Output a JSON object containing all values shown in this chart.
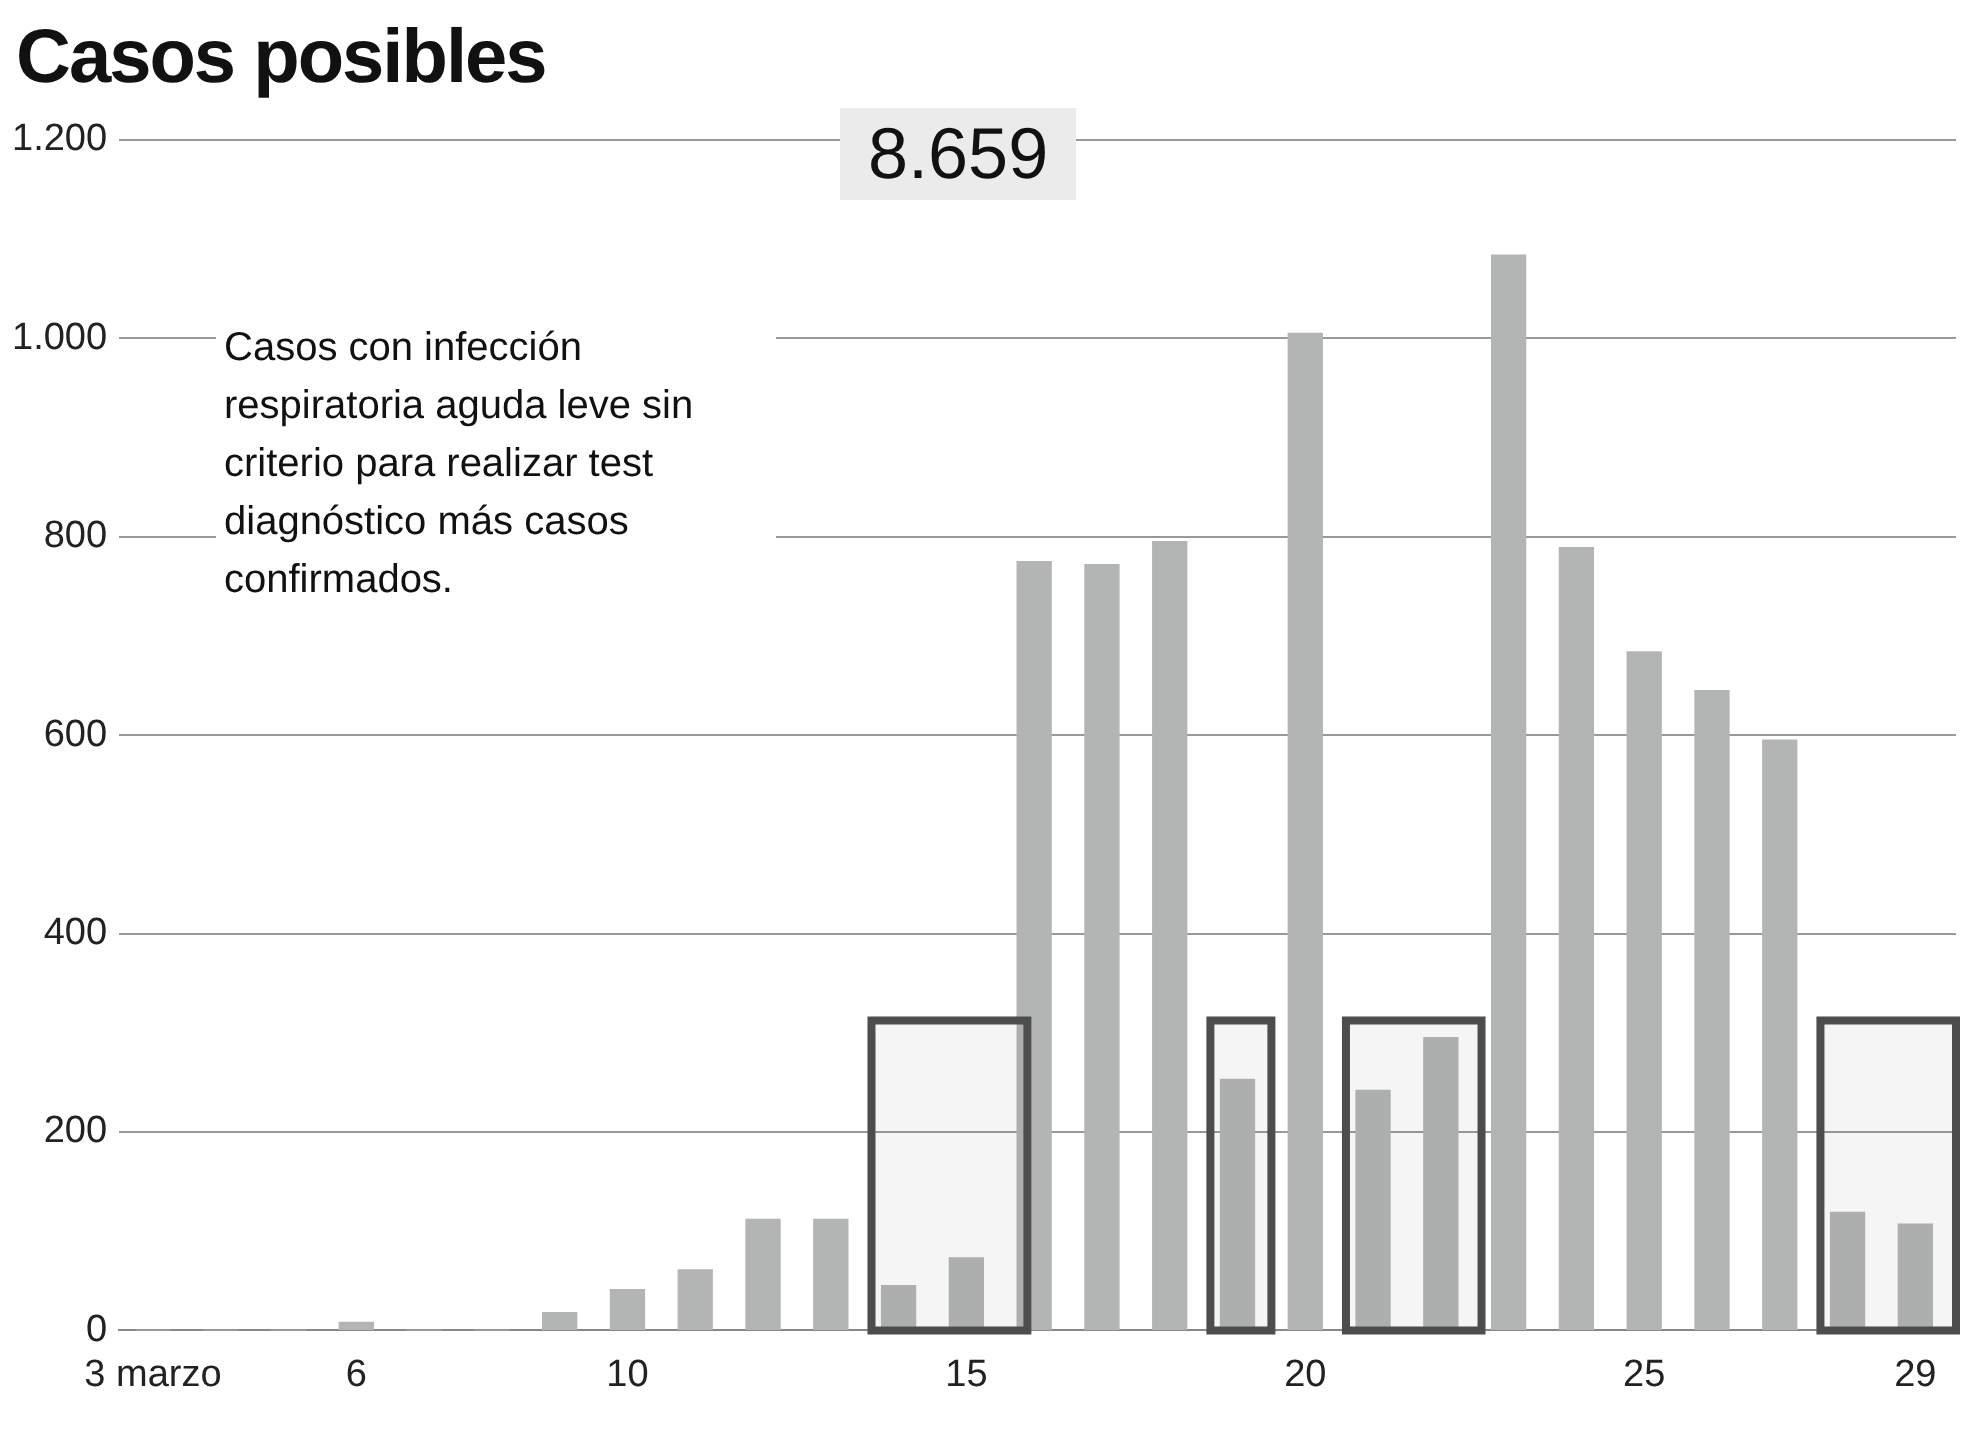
{
  "chart_data": {
    "type": "bar",
    "title": "Casos posibles",
    "annotations": [
      "8.659",
      "Casos con infección respiratoria aguda leve sin criterio para realizar test diagnóstico más casos confirmados."
    ],
    "x": [
      3,
      4,
      5,
      6,
      7,
      8,
      9,
      10,
      11,
      12,
      13,
      14,
      15,
      16,
      17,
      18,
      19,
      20,
      21,
      22,
      23,
      24,
      25,
      26,
      27,
      28,
      29
    ],
    "values": [
      0,
      0,
      0,
      8,
      0,
      0,
      18,
      41,
      61,
      112,
      112,
      45,
      73,
      775,
      772,
      795,
      253,
      1005,
      242,
      295,
      1084,
      789,
      684,
      645,
      595,
      119,
      107
    ],
    "color": "#b3b5b4",
    "xlim": [
      2.5,
      29.6
    ],
    "xticks": [
      {
        "value": 3,
        "label": "3 marzo"
      },
      6,
      10,
      15,
      20,
      25,
      29
    ],
    "ylim": [
      0,
      1200
    ],
    "yticks": [
      0,
      200,
      400,
      600,
      800,
      {
        "value": 1000,
        "label": "1.000"
      },
      {
        "value": 1200,
        "label": "1.200"
      }
    ],
    "grid": "y",
    "bands": [
      {
        "axis": "x",
        "from": 13.6,
        "to": 15.9,
        "color": "#4d4d4d"
      },
      {
        "axis": "x",
        "from": 18.6,
        "to": 19.5,
        "color": "#4d4d4d"
      },
      {
        "axis": "x",
        "from": 20.6,
        "to": 22.6,
        "color": "#4d4d4d"
      },
      {
        "axis": "x",
        "from": 27.6,
        "to": 29.6,
        "color": "#4d4d4d"
      }
    ]
  }
}
